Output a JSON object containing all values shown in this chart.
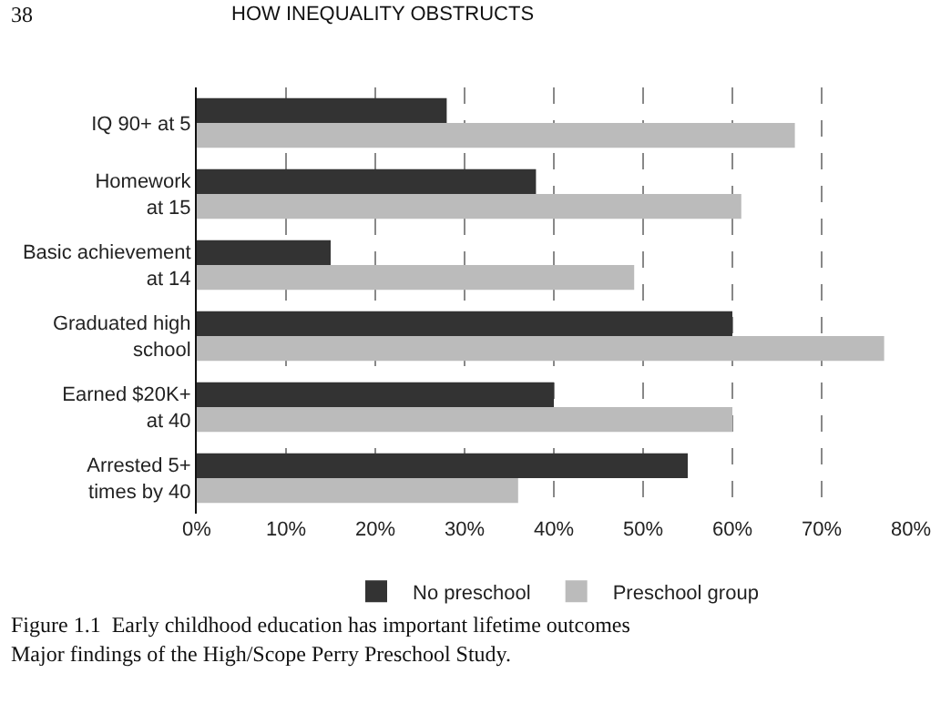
{
  "chart_data": {
    "type": "bar",
    "orientation": "horizontal",
    "categories": [
      "IQ 90+ at 5",
      "Homework\nat 15",
      "Basic achievement\nat 14",
      "Graduated high\nschool",
      "Earned $20K+\nat 40",
      "Arrested 5+\ntimes by 40"
    ],
    "series": [
      {
        "name": "No preschool",
        "color": "#333333",
        "values": [
          28,
          38,
          15,
          60,
          40,
          55
        ]
      },
      {
        "name": "Preschool group",
        "color": "#bbbbbb",
        "values": [
          67,
          61,
          49,
          77,
          60,
          36
        ]
      }
    ],
    "xlim": [
      0,
      80
    ],
    "xticks": [
      {
        "value": 0,
        "label": "0%"
      },
      {
        "value": 10,
        "label": "10%"
      },
      {
        "value": 20,
        "label": "20%"
      },
      {
        "value": 30,
        "label": "30%"
      },
      {
        "value": 40,
        "label": "40%"
      },
      {
        "value": 50,
        "label": "50%"
      },
      {
        "value": 60,
        "label": "60%"
      },
      {
        "value": 70,
        "label": "70%"
      },
      {
        "value": 80,
        "label": "80%"
      }
    ],
    "grid": "x",
    "legend": "bottom",
    "annotations": [
      "38",
      "HOW INEQUALITY OBSTRUCTS",
      "Figure 1.1  Early childhood education has important lifetime outcomes",
      "Major findings of the High/Scope Perry Preschool Study."
    ]
  }
}
